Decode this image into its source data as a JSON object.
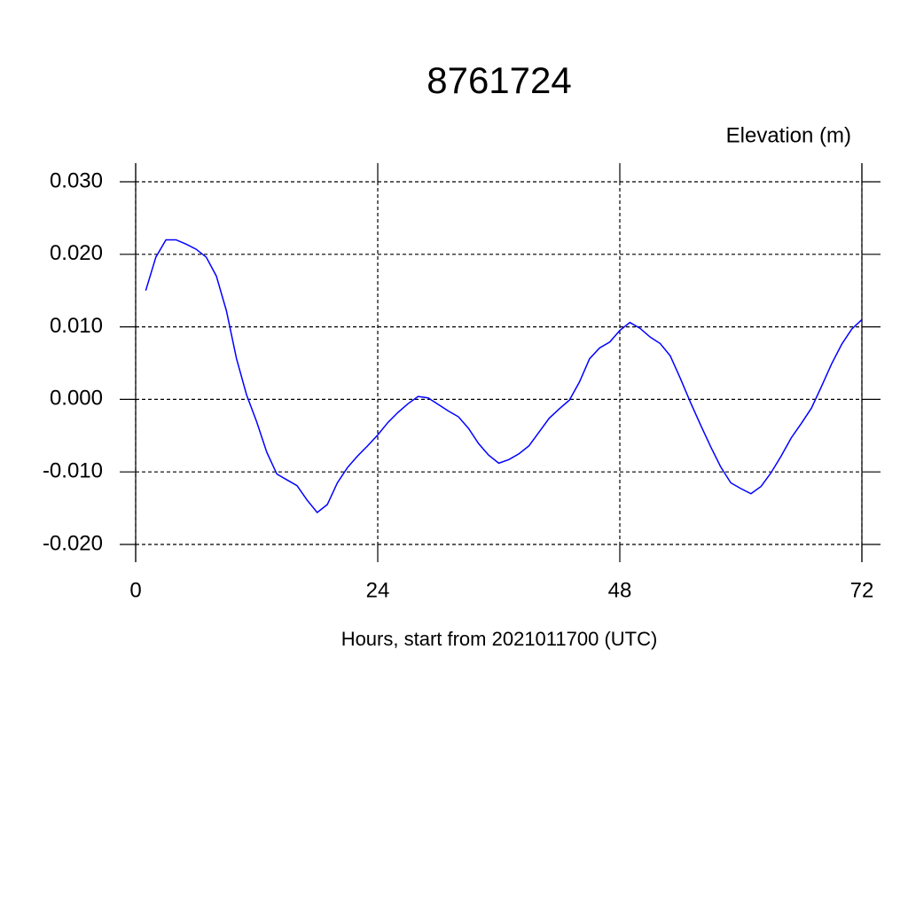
{
  "chart_data": {
    "type": "line",
    "title": "8761724",
    "y_label": "Elevation (m)",
    "x_label": "Hours, start from 2021011700 (UTC)",
    "x": [
      1,
      2,
      3,
      4,
      5,
      6,
      7,
      8,
      9,
      10,
      11,
      12,
      13,
      14,
      15,
      16,
      17,
      18,
      19,
      20,
      21,
      22,
      23,
      24,
      25,
      26,
      27,
      28,
      29,
      30,
      31,
      32,
      33,
      34,
      35,
      36,
      37,
      38,
      39,
      40,
      41,
      42,
      43,
      44,
      45,
      46,
      47,
      48,
      49,
      50,
      51,
      52,
      53,
      54,
      55,
      56,
      57,
      58,
      59,
      60,
      61,
      62,
      63,
      64,
      65,
      66,
      67,
      68,
      69,
      70,
      71,
      72
    ],
    "series": [
      {
        "name": "Elevation",
        "color": "#0000ff",
        "values": [
          0.015,
          0.0196,
          0.022,
          0.022,
          0.0214,
          0.0207,
          0.0196,
          0.017,
          0.0122,
          0.0056,
          0.0006,
          -0.0031,
          -0.0073,
          -0.0103,
          -0.0111,
          -0.0119,
          -0.0139,
          -0.0156,
          -0.0145,
          -0.0115,
          -0.0094,
          -0.0078,
          -0.0064,
          -0.0049,
          -0.0032,
          -0.0018,
          -0.0006,
          0.0004,
          0.0002,
          -0.0007,
          -0.0016,
          -0.0024,
          -0.004,
          -0.0061,
          -0.0077,
          -0.0088,
          -0.0083,
          -0.0075,
          -0.0064,
          -0.0045,
          -0.0026,
          -0.0013,
          -0.0001,
          0.0024,
          0.0056,
          0.0071,
          0.0079,
          0.0095,
          0.0106,
          0.0098,
          0.0086,
          0.0077,
          0.006,
          0.0029,
          -0.0004,
          -0.0035,
          -0.0065,
          -0.0093,
          -0.0115,
          -0.0123,
          -0.013,
          -0.012,
          -0.0101,
          -0.0078,
          -0.0053,
          -0.0033,
          -0.0012,
          0.0018,
          0.0049,
          0.0076,
          0.0097,
          0.011
        ]
      }
    ],
    "xlim": [
      0,
      72
    ],
    "ylim": [
      -0.02,
      0.03
    ],
    "xticks": [
      0,
      24,
      48,
      72
    ],
    "yticks": [
      {
        "value": -0.02,
        "label": "-0.020"
      },
      {
        "value": -0.01,
        "label": "-0.010"
      },
      {
        "value": 0,
        "label": "0.000"
      },
      {
        "value": 0.01,
        "label": "0.010"
      },
      {
        "value": 0.02,
        "label": "0.020"
      },
      {
        "value": 0.03,
        "label": "0.030"
      }
    ],
    "grid": true
  }
}
